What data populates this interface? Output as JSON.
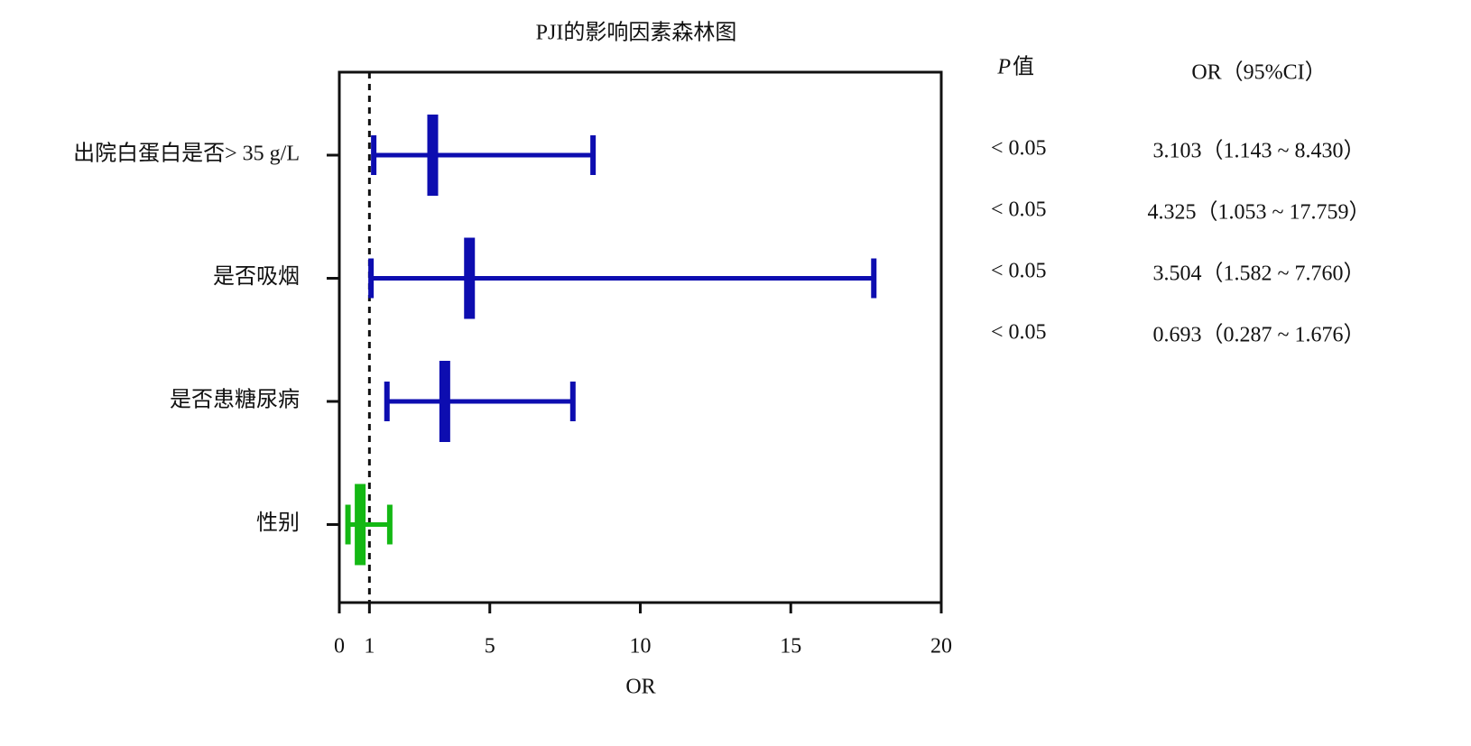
{
  "chart_data": {
    "type": "forest",
    "title": "PJI的影响因素森林图",
    "xlabel": "OR",
    "categories": [
      "出院白蛋白是否> 35 g/L",
      "是否吸烟",
      "是否患糖尿病",
      "性别"
    ],
    "values": [
      3.103,
      4.325,
      3.504,
      0.693
    ],
    "lower": [
      1.143,
      1.053,
      1.582,
      0.287
    ],
    "upper": [
      8.43,
      17.759,
      7.76,
      1.676
    ],
    "colors": [
      "#0d0db0",
      "#0d0db0",
      "#0d0db0",
      "#14b814"
    ],
    "xlim": [
      0,
      20
    ],
    "xticks": [
      0,
      1,
      5,
      10,
      15,
      20
    ],
    "reference": 1,
    "table": {
      "p_header": [
        "P",
        "值"
      ],
      "or_header": "OR（95%CI）",
      "p_values": [
        "< 0.05",
        "< 0.05",
        "< 0.05",
        "< 0.05"
      ],
      "or_ci": [
        "3.103（1.143 ~ 8.430）",
        "4.325（1.053 ~ 17.759）",
        "3.504（1.582 ~ 7.760）",
        "0.693（0.287 ~ 1.676）"
      ]
    }
  }
}
